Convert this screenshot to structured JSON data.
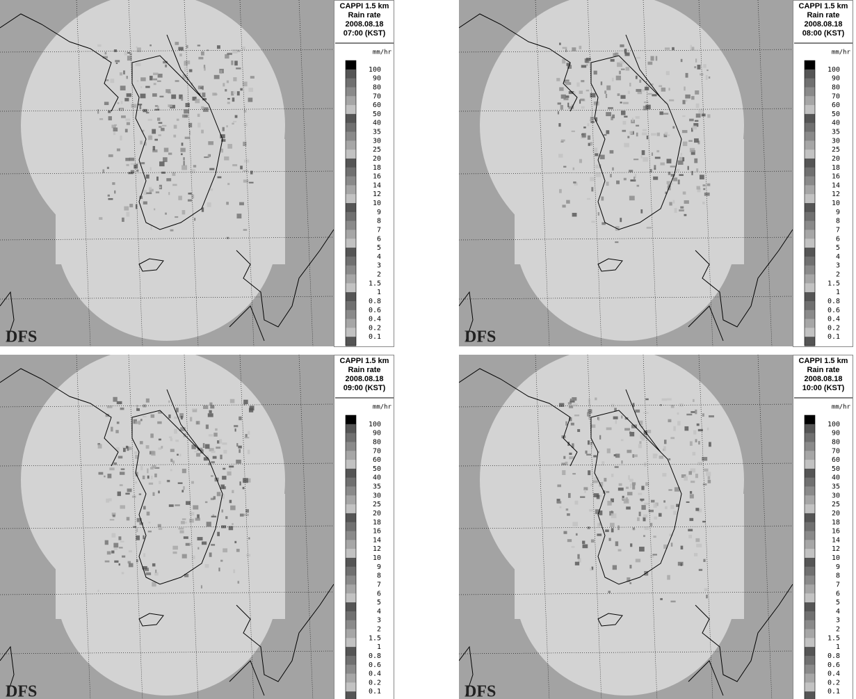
{
  "panels": [
    {
      "title_lines": [
        "CAPPI 1.5 km",
        "Rain rate",
        "2008.08.18",
        "07:00 (KST)"
      ],
      "unit": "mm/hr",
      "watermark": "DFS"
    },
    {
      "title_lines": [
        "CAPPI 1.5 km",
        "Rain rate",
        "2008.08.18",
        "08:00 (KST)"
      ],
      "unit": "mm/hr",
      "watermark": "DFS"
    },
    {
      "title_lines": [
        "CAPPI 1.5 km",
        "Rain rate",
        "2008.08.18",
        "09:00 (KST)"
      ],
      "unit": "mm/hr",
      "watermark": "DFS"
    },
    {
      "title_lines": [
        "CAPPI 1.5 km",
        "Rain rate",
        "2008.08.18",
        "10:00 (KST)"
      ],
      "unit": "mm/hr",
      "watermark": "DFS"
    }
  ],
  "legend_labels": [
    "100",
    "90",
    "80",
    "70",
    "60",
    "50",
    "40",
    "35",
    "30",
    "25",
    "20",
    "18",
    "16",
    "14",
    "12",
    "10",
    "9",
    "8",
    "7",
    "6",
    "5",
    "4",
    "3",
    "2",
    "1.5",
    "1",
    "0.8",
    "0.6",
    "0.4",
    "0.2",
    "0.1"
  ]
}
